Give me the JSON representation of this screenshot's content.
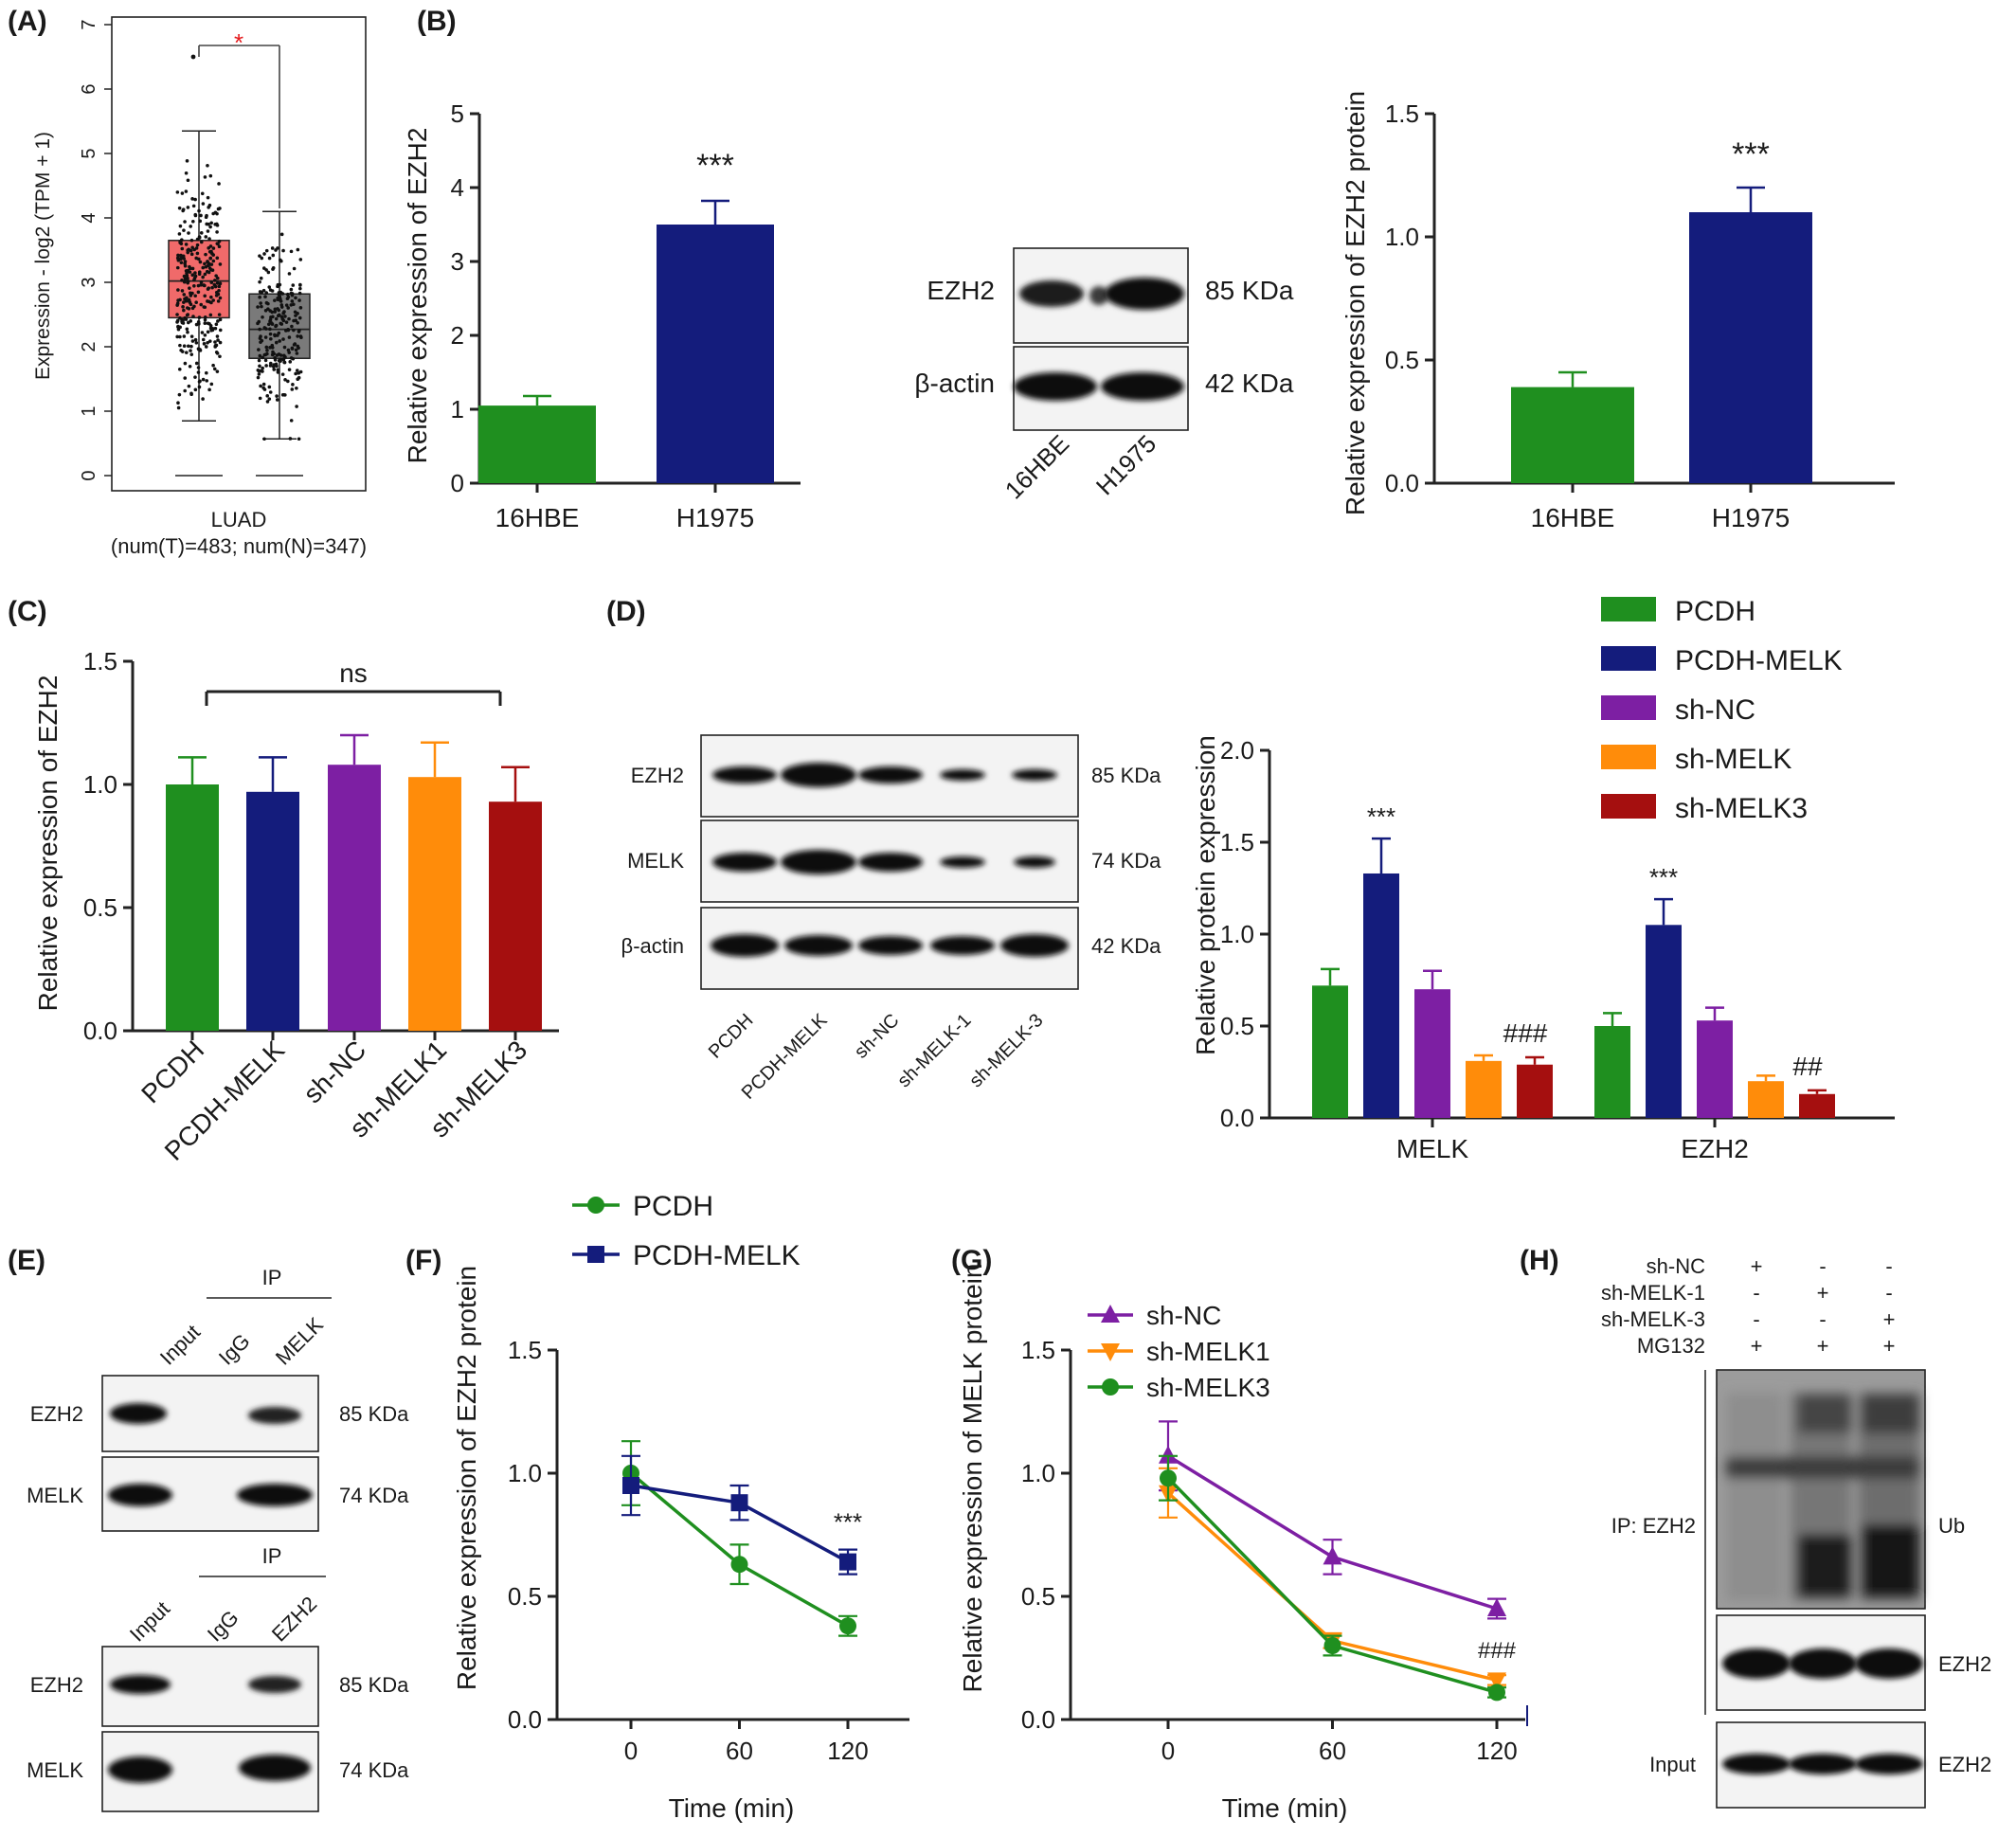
{
  "colors": {
    "green": "#1f8f1f",
    "navy": "#141c7c",
    "purple": "#7d1fa3",
    "orange": "#ff8c0a",
    "darkred": "#a50f0f",
    "tumor": "#f06a6a",
    "normal": "#7a7a7a",
    "star": "#e41a1c"
  },
  "panelA": {
    "label": "(A)",
    "ylabel": "Expression - log2 (TPM + 1)",
    "yticks": [
      "0",
      "1",
      "2",
      "3",
      "4",
      "5",
      "6",
      "7"
    ],
    "xlabel_line1": "LUAD",
    "xlabel_line2": "(num(T)=483; num(N)=347)",
    "sig": "*",
    "boxes": [
      {
        "q1": 2.45,
        "median": 3.02,
        "q3": 3.65,
        "whisker_low": 0.85,
        "whisker_high": 5.35,
        "outlier_max": 6.5
      },
      {
        "q1": 1.82,
        "median": 2.27,
        "q3": 2.82,
        "whisker_low": 0.57,
        "whisker_high": 4.1
      }
    ]
  },
  "panelB": {
    "label": "(B)",
    "qpcr": {
      "ylabel": "Relative expression of EZH2",
      "yticks": [
        "0",
        "1",
        "2",
        "3",
        "4",
        "5"
      ],
      "categories": [
        "16HBE",
        "H1975"
      ],
      "values": [
        1.05,
        3.5
      ],
      "errors": [
        0.13,
        0.32
      ],
      "sig": "***"
    },
    "blot": {
      "rows": [
        {
          "name": "EZH2",
          "size": "85 KDa"
        },
        {
          "name": "β-actin",
          "size": "42 KDa"
        }
      ],
      "lanes": [
        "16HBE",
        "H1975"
      ]
    },
    "protein": {
      "ylabel": "Relative expression of EZH2 protein",
      "yticks": [
        "0.0",
        "0.5",
        "1.0",
        "1.5"
      ],
      "categories": [
        "16HBE",
        "H1975"
      ],
      "values": [
        0.39,
        1.1
      ],
      "errors": [
        0.06,
        0.1
      ],
      "sig": "***"
    }
  },
  "panelC": {
    "label": "(C)",
    "ylabel": "Relative expression of EZH2",
    "yticks": [
      "0.0",
      "0.5",
      "1.0",
      "1.5"
    ],
    "categories": [
      "PCDH",
      "PCDH-MELK",
      "sh-NC",
      "sh-MELK1",
      "sh-MELK3"
    ],
    "values": [
      1.0,
      0.97,
      1.08,
      1.03,
      0.93
    ],
    "errors": [
      0.11,
      0.14,
      0.12,
      0.14,
      0.14
    ],
    "sig": "ns"
  },
  "panelD": {
    "label": "(D)",
    "legend": [
      "PCDH",
      "PCDH-MELK",
      "sh-NC",
      "sh-MELK",
      "sh-MELK3"
    ],
    "blot": {
      "rows": [
        {
          "name": "EZH2",
          "size": "85 KDa"
        },
        {
          "name": "MELK",
          "size": "74 KDa"
        },
        {
          "name": "β-actin",
          "size": "42 KDa"
        }
      ],
      "lanes": [
        "PCDH",
        "PCDH-MELK",
        "sh-NC",
        "sh-MELK-1",
        "sh-MELK-3"
      ]
    },
    "ylabel": "Relative protein expression",
    "yticks": [
      "0.0",
      "0.5",
      "1.0",
      "1.5",
      "2.0"
    ],
    "groups": [
      "MELK",
      "EZH2"
    ],
    "values": [
      [
        0.72,
        1.33,
        0.7,
        0.31,
        0.29
      ],
      [
        0.5,
        1.05,
        0.53,
        0.2,
        0.13
      ]
    ],
    "errors": [
      [
        0.09,
        0.19,
        0.1,
        0.03,
        0.04
      ],
      [
        0.07,
        0.14,
        0.07,
        0.03,
        0.02
      ]
    ],
    "sig_star": "***",
    "sig_hash": [
      "###",
      "##"
    ]
  },
  "panelE": {
    "label": "(E)",
    "ip": "IP",
    "top": {
      "lanes": [
        "Input",
        "IgG",
        "MELK"
      ],
      "rows": [
        {
          "name": "EZH2",
          "size": "85 KDa"
        },
        {
          "name": "MELK",
          "size": "74 KDa"
        }
      ]
    },
    "bottom": {
      "lanes": [
        "Input",
        "IgG",
        "EZH2"
      ],
      "rows": [
        {
          "name": "EZH2",
          "size": "85 KDa"
        },
        {
          "name": "MELK",
          "size": "74 KDa"
        }
      ]
    }
  },
  "panelF": {
    "label": "(F)",
    "ylabel": "Relative expression of EZH2 protein",
    "xlabel": "Time  (min)",
    "xticks": [
      "0",
      "60",
      "120"
    ],
    "yticks": [
      "0.0",
      "0.5",
      "1.0",
      "1.5"
    ],
    "series": [
      {
        "name": "PCDH",
        "x": [
          0,
          60,
          120
        ],
        "y": [
          1.0,
          0.63,
          0.38
        ],
        "err": [
          0.13,
          0.08,
          0.04
        ]
      },
      {
        "name": "PCDH-MELK",
        "x": [
          0,
          60,
          120
        ],
        "y": [
          0.95,
          0.88,
          0.64
        ],
        "err": [
          0.12,
          0.07,
          0.05
        ]
      }
    ],
    "sig": "***"
  },
  "panelG": {
    "label": "(G)",
    "ylabel": "Relative expression of MELK protein",
    "xlabel": "Time  (min)",
    "xticks": [
      "0",
      "60",
      "120"
    ],
    "yticks": [
      "0.0",
      "0.5",
      "1.0",
      "1.5"
    ],
    "series": [
      {
        "name": "sh-NC",
        "x": [
          0,
          60,
          120
        ],
        "y": [
          1.07,
          0.66,
          0.45
        ],
        "err": [
          0.14,
          0.07,
          0.04
        ]
      },
      {
        "name": "sh-MELK1",
        "x": [
          0,
          60,
          120
        ],
        "y": [
          0.92,
          0.32,
          0.16
        ],
        "err": [
          0.1,
          0.03,
          0.02
        ]
      },
      {
        "name": "sh-MELK3",
        "x": [
          0,
          60,
          120
        ],
        "y": [
          0.98,
          0.3,
          0.11
        ],
        "err": [
          0.09,
          0.04,
          0.02
        ]
      }
    ],
    "sig": "###"
  },
  "panelH": {
    "label": "(H)",
    "conditions": [
      {
        "name": "sh-NC",
        "marks": [
          "+",
          "-",
          "-"
        ]
      },
      {
        "name": "sh-MELK-1",
        "marks": [
          "-",
          "+",
          "-"
        ]
      },
      {
        "name": "sh-MELK-3",
        "marks": [
          "-",
          "-",
          "+"
        ]
      },
      {
        "name": "MG132",
        "marks": [
          "+",
          "+",
          "+"
        ]
      }
    ],
    "ip_label": "IP:  EZH2",
    "ub": "Ub",
    "ezh2": "EZH2",
    "input": "Input"
  }
}
